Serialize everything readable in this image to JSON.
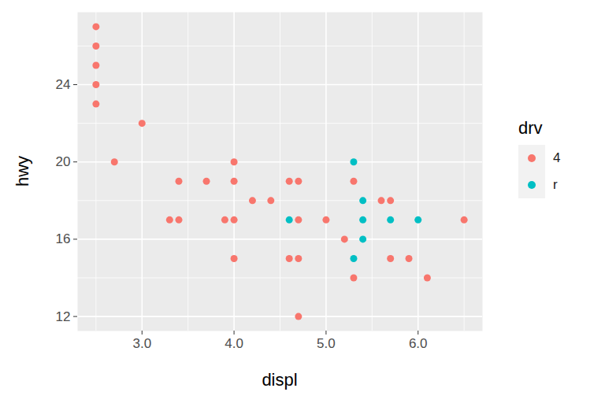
{
  "chart_data": {
    "type": "scatter",
    "x_label": "displ",
    "y_label": "hwy",
    "legend_title": "drv",
    "legend": "right",
    "grid": true,
    "xlim": [
      2.3,
      6.7
    ],
    "xticks": [
      3,
      4,
      5,
      6
    ],
    "ylim": [
      11.25,
      27.75
    ],
    "yticks": [
      12,
      16,
      20,
      24
    ],
    "series": [
      {
        "name": "4",
        "color": "#F8766D",
        "x": [
          2.5,
          2.5,
          2.5,
          2.5,
          2.5,
          3.0,
          2.7,
          3.3,
          3.4,
          3.4,
          3.7,
          3.9,
          4.0,
          4.0,
          4.0,
          4.0,
          4.2,
          4.4,
          4.6,
          4.6,
          4.7,
          4.7,
          4.7,
          4.7,
          5.0,
          5.2,
          5.3,
          5.3,
          5.6,
          5.7,
          5.7,
          5.9,
          6.1,
          6.5
        ],
        "values": [
          27,
          26,
          25,
          24,
          23,
          22,
          20,
          17,
          19,
          17,
          19,
          17,
          20,
          19,
          17,
          15,
          18,
          18,
          19,
          15,
          19,
          17,
          15,
          12,
          17,
          16,
          19,
          14,
          18,
          18,
          15,
          15,
          14,
          17
        ]
      },
      {
        "name": "r",
        "color": "#00BFC4",
        "x": [
          4.6,
          5.3,
          5.3,
          5.4,
          5.4,
          5.4,
          5.7,
          6.0
        ],
        "values": [
          17,
          20,
          15,
          18,
          17,
          16,
          17,
          17
        ]
      }
    ]
  }
}
